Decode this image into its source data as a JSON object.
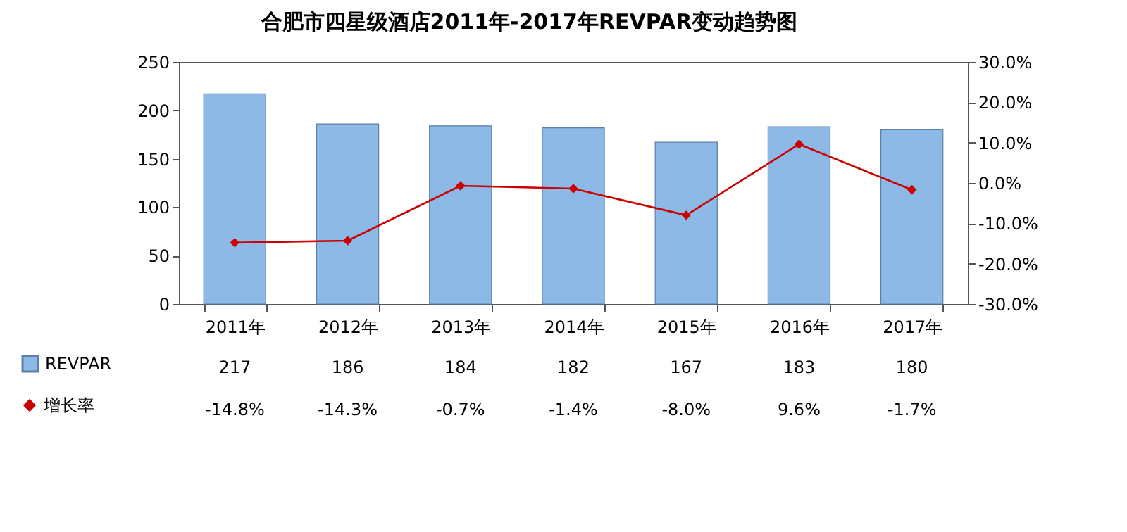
{
  "chart_data": {
    "type": "bar",
    "title": "合肥市四星级酒店2011年-2017年REVPAR变动趋势图",
    "categories": [
      "2011年",
      "2012年",
      "2013年",
      "2014年",
      "2015年",
      "2016年",
      "2017年"
    ],
    "series": [
      {
        "name": "REVPAR",
        "color": "#8db9e6",
        "values": [
          217,
          186,
          184,
          182,
          167,
          183,
          180
        ],
        "value_labels": [
          "217",
          "186",
          "184",
          "182",
          "167",
          "183",
          "180"
        ]
      },
      {
        "name": "增长率",
        "type": "line",
        "axis": "y2",
        "color": "#cc0000",
        "values": [
          -14.8,
          -14.3,
          -0.7,
          -1.4,
          -8.0,
          9.6,
          -1.7
        ],
        "value_labels": [
          "-14.8%",
          "-14.3%",
          "-0.7%",
          "-1.4%",
          "-8.0%",
          "9.6%",
          "-1.7%"
        ]
      }
    ],
    "ylim": [
      0,
      250
    ],
    "yticks": [
      0,
      50,
      100,
      150,
      200,
      250
    ],
    "y2lim": [
      -30,
      30
    ],
    "y2ticks": [
      {
        "value": -30,
        "label": "-30.0%"
      },
      {
        "value": -20,
        "label": "-20.0%"
      },
      {
        "value": -10,
        "label": "-10.0%"
      },
      {
        "value": 0,
        "label": "0.0%"
      },
      {
        "value": 10,
        "label": "10.0%"
      },
      {
        "value": 20,
        "label": "20.0%"
      },
      {
        "value": 30,
        "label": "30.0%"
      }
    ],
    "marker": "diamond",
    "line_style": "solid",
    "grid": false,
    "legend": "bottom left"
  }
}
